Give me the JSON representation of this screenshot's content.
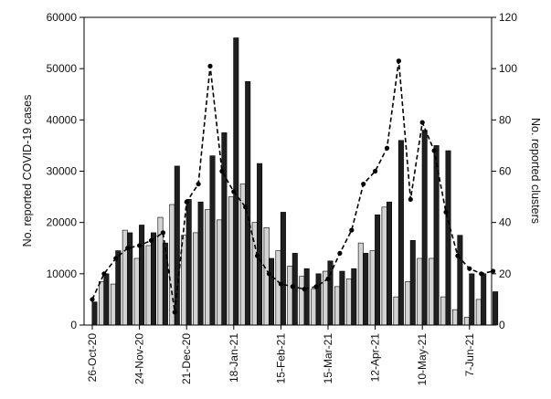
{
  "chart_data": {
    "type": "bar",
    "title": "",
    "ylabel_left": "No. reported COVID-19 cases",
    "ylabel_right": "No. reported clusters",
    "ylim_left": [
      0,
      60000
    ],
    "ylim_right": [
      0,
      120
    ],
    "yticks_left": [
      "0",
      "10000",
      "20000",
      "30000",
      "40000",
      "50000",
      "60000"
    ],
    "yticks_right": [
      "0",
      "20",
      "40",
      "60",
      "80",
      "100",
      "120"
    ],
    "x_tick_labels": [
      "26-Oct-20",
      "24-Nov-20",
      "21-Dec-20",
      "18-Jan-21",
      "15-Feb-21",
      "15-Mar-21",
      "12-Apr-21",
      "10-May-21",
      "7-Jun-21"
    ],
    "series": [
      {
        "values": [
          null,
          8500,
          8000,
          18500,
          13000,
          15500,
          21000,
          23500,
          17500,
          18000,
          22500,
          20500,
          25000,
          27500,
          20000,
          19000,
          14500,
          11500,
          9500,
          7000,
          10500,
          7500,
          9000,
          16000,
          14500,
          23000,
          5500,
          8500,
          13000,
          13000,
          5500,
          3000,
          1500,
          5000
        ]
      },
      {
        "values": [
          4500,
          10000,
          14500,
          18000,
          19500,
          18000,
          16000,
          31000,
          24500,
          24000,
          33000,
          37500,
          56000,
          47500,
          31500,
          13000,
          22000,
          14000,
          11000,
          10000,
          12500,
          10500,
          11000,
          14000,
          21500,
          24000,
          36000,
          16500,
          38000,
          35000,
          34000,
          17500,
          10000,
          10000,
          6500
        ]
      },
      {
        "values": [
          10,
          20,
          26,
          30,
          31,
          33,
          36,
          5,
          48,
          55,
          101,
          60,
          52,
          46,
          27,
          20,
          16,
          15,
          14,
          15,
          18,
          28,
          37,
          55,
          60,
          69,
          103,
          49,
          79,
          68,
          44,
          27,
          22,
          20,
          21
        ]
      }
    ]
  }
}
